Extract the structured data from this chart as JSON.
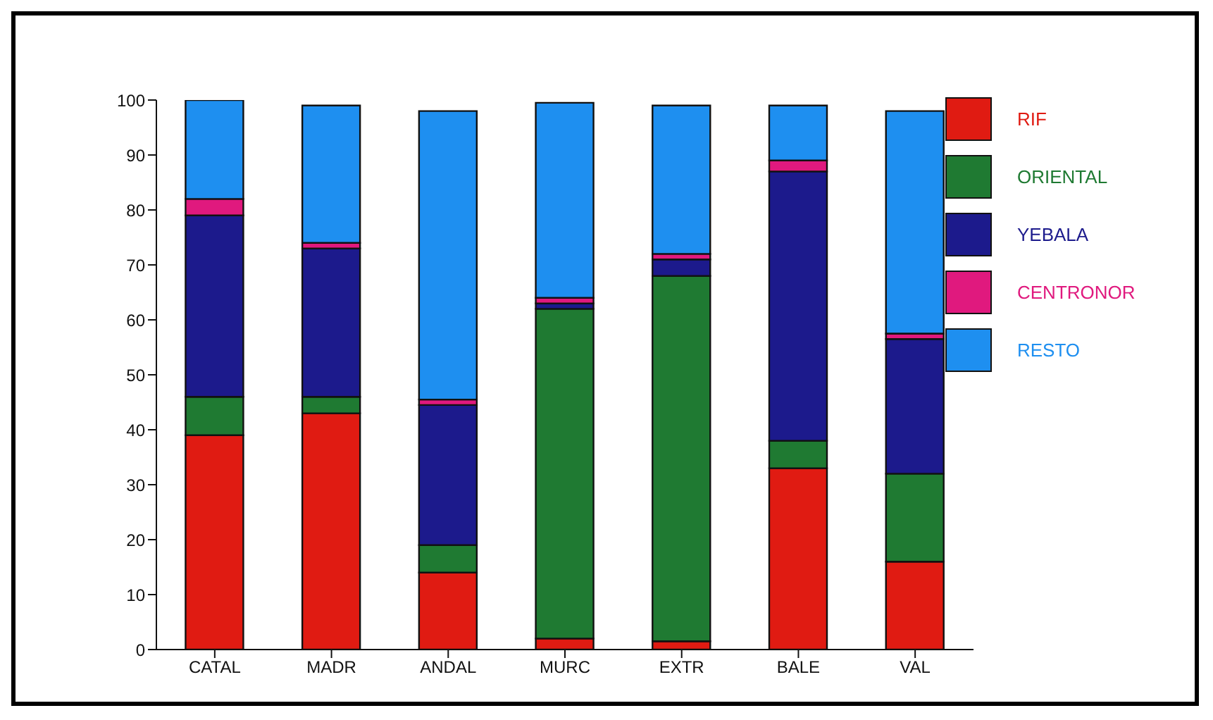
{
  "chart_data": {
    "type": "bar",
    "stacked": true,
    "categories": [
      "CATAL",
      "MADR",
      "ANDAL",
      "MURC",
      "EXTR",
      "BALE",
      "VAL"
    ],
    "series": [
      {
        "name": "RIF",
        "color": "#e01b12",
        "values": [
          39,
          43,
          14,
          2,
          1.5,
          33,
          16
        ]
      },
      {
        "name": "ORIENTAL",
        "color": "#1f7a32",
        "values": [
          7,
          3,
          5,
          60,
          66.5,
          5,
          16
        ]
      },
      {
        "name": "YEBALA",
        "color": "#1c1a8c",
        "values": [
          33,
          27,
          25.5,
          1,
          3,
          49,
          24.5
        ]
      },
      {
        "name": "CENTRONOR",
        "color": "#e0197e",
        "values": [
          3,
          1,
          1,
          1,
          1,
          2,
          1
        ]
      },
      {
        "name": "RESTO",
        "color": "#1e8ff0",
        "values": [
          18,
          25,
          52.5,
          35.5,
          27,
          10,
          40.5
        ]
      }
    ],
    "ylim": [
      0,
      100
    ],
    "yticks": [
      0,
      10,
      20,
      30,
      40,
      50,
      60,
      70,
      80,
      90,
      100
    ],
    "grid": false,
    "legend": "top right"
  }
}
